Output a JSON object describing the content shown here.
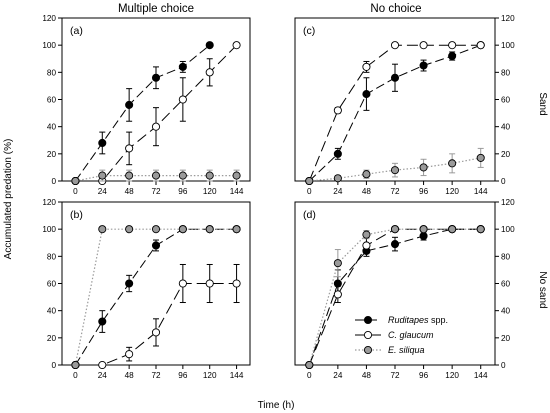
{
  "figure": {
    "col_titles": [
      "Multiple choice",
      "No choice"
    ],
    "ylabel": "Accumulated predation (%)",
    "xlabel": "Time (h)",
    "right_labels": [
      "Sand",
      "No sand"
    ],
    "legend": [
      {
        "italic": "Ruditapes",
        "rest": " spp."
      },
      {
        "italic": "C. glaucum",
        "rest": ""
      },
      {
        "italic": "E. siliqua",
        "rest": ""
      }
    ]
  },
  "colors": {
    "ruditapes": "#000000",
    "c_glaucum": "#ffffff",
    "e_siliqua": "#9a9a9a",
    "axis": "#000000"
  },
  "chart_data": [
    {
      "panel": "(a)",
      "type": "line",
      "title": "Multiple choice",
      "xlim": [
        -12,
        156
      ],
      "ylim": [
        0,
        120
      ],
      "xticks": [
        0,
        24,
        48,
        72,
        96,
        120,
        144
      ],
      "yticks": [
        0,
        20,
        40,
        60,
        80,
        100,
        120
      ],
      "series": [
        {
          "name": "Ruditapes spp.",
          "style": "ruditapes",
          "x": [
            0,
            24,
            48,
            72,
            96,
            120
          ],
          "y": [
            0,
            28,
            56,
            76,
            84,
            100
          ],
          "err": [
            0,
            8,
            12,
            8,
            4,
            0
          ]
        },
        {
          "name": "C. glaucum",
          "style": "c_glaucum",
          "x": [
            0,
            24,
            48,
            72,
            96,
            120,
            144
          ],
          "y": [
            0,
            0,
            24,
            40,
            60,
            80,
            100
          ],
          "err": [
            0,
            0,
            12,
            14,
            16,
            10,
            0
          ]
        },
        {
          "name": "E. siliqua",
          "style": "e_siliqua",
          "x": [
            0,
            24,
            48,
            72,
            96,
            120,
            144
          ],
          "y": [
            0,
            4,
            4,
            4,
            4,
            4,
            4
          ],
          "err": [
            0,
            4,
            4,
            4,
            4,
            4,
            4
          ]
        }
      ]
    },
    {
      "panel": "(c)",
      "type": "line",
      "title": "No choice",
      "right_label": "Sand",
      "xlim": [
        -12,
        156
      ],
      "ylim": [
        0,
        120
      ],
      "xticks": [
        0,
        24,
        48,
        72,
        96,
        120,
        144
      ],
      "yticks": [
        0,
        20,
        40,
        60,
        80,
        100,
        120
      ],
      "series": [
        {
          "name": "Ruditapes spp.",
          "style": "ruditapes",
          "x": [
            0,
            24,
            48,
            72,
            96,
            120,
            144
          ],
          "y": [
            0,
            20,
            64,
            76,
            85,
            92,
            100
          ],
          "err": [
            0,
            4,
            12,
            10,
            4,
            3,
            0
          ]
        },
        {
          "name": "C. glaucum",
          "style": "c_glaucum",
          "x": [
            0,
            24,
            48,
            72,
            96,
            120,
            144
          ],
          "y": [
            0,
            52,
            84,
            100,
            100,
            100,
            100
          ],
          "err": [
            0,
            2,
            4,
            0,
            0,
            0,
            0
          ]
        },
        {
          "name": "E. siliqua",
          "style": "e_siliqua",
          "x": [
            0,
            24,
            48,
            72,
            96,
            120,
            144
          ],
          "y": [
            0,
            2,
            5,
            8,
            10,
            13,
            17
          ],
          "err": [
            0,
            2,
            3,
            5,
            6,
            7,
            7
          ]
        }
      ]
    },
    {
      "panel": "(b)",
      "type": "line",
      "xlim": [
        -12,
        156
      ],
      "ylim": [
        0,
        120
      ],
      "xticks": [
        0,
        24,
        48,
        72,
        96,
        120,
        144
      ],
      "yticks": [
        0,
        20,
        40,
        60,
        80,
        100,
        120
      ],
      "series": [
        {
          "name": "Ruditapes spp.",
          "style": "ruditapes",
          "x": [
            0,
            24,
            48,
            72,
            96,
            120,
            144
          ],
          "y": [
            0,
            32,
            60,
            88,
            100,
            100,
            100
          ],
          "err": [
            0,
            8,
            6,
            4,
            0,
            0,
            0
          ]
        },
        {
          "name": "C. glaucum",
          "style": "c_glaucum",
          "x": [
            0,
            24,
            48,
            72,
            96,
            120,
            144
          ],
          "y": [
            0,
            0,
            8,
            24,
            60,
            60,
            60
          ],
          "err": [
            0,
            0,
            5,
            10,
            14,
            14,
            14
          ]
        },
        {
          "name": "E. siliqua",
          "style": "e_siliqua",
          "x": [
            0,
            24,
            48,
            72,
            96,
            120,
            144
          ],
          "y": [
            0,
            100,
            100,
            100,
            100,
            100,
            100
          ],
          "err": [
            0,
            0,
            0,
            0,
            0,
            0,
            0
          ]
        }
      ]
    },
    {
      "panel": "(d)",
      "type": "line",
      "right_label": "No sand",
      "xlim": [
        -12,
        156
      ],
      "ylim": [
        0,
        120
      ],
      "xticks": [
        0,
        24,
        48,
        72,
        96,
        120,
        144
      ],
      "yticks": [
        0,
        20,
        40,
        60,
        80,
        100,
        120
      ],
      "series": [
        {
          "name": "Ruditapes spp.",
          "style": "ruditapes",
          "x": [
            0,
            24,
            48,
            72,
            96,
            120,
            144
          ],
          "y": [
            0,
            60,
            84,
            89,
            95,
            100,
            100
          ],
          "err": [
            0,
            10,
            4,
            5,
            3,
            0,
            0
          ]
        },
        {
          "name": "C. glaucum",
          "style": "c_glaucum",
          "x": [
            0,
            24,
            48,
            72,
            96,
            120,
            144
          ],
          "y": [
            0,
            52,
            88,
            100,
            100,
            100,
            100
          ],
          "err": [
            0,
            6,
            6,
            0,
            0,
            0,
            0
          ]
        },
        {
          "name": "E. siliqua",
          "style": "e_siliqua",
          "x": [
            0,
            24,
            48,
            72,
            96,
            120,
            144
          ],
          "y": [
            0,
            75,
            96,
            100,
            100,
            100,
            100
          ],
          "err": [
            0,
            10,
            3,
            0,
            0,
            0,
            0
          ]
        }
      ]
    }
  ]
}
